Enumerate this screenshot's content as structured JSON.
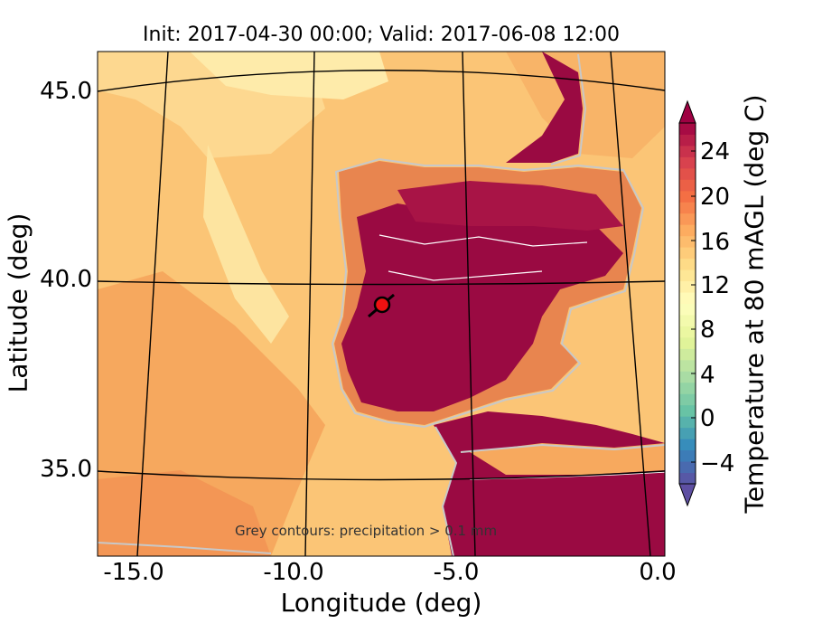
{
  "chart_data": {
    "type": "heatmap",
    "title": "Init: 2017-04-30 00:00; Valid: 2017-06-08 12:00",
    "xlabel": "Longitude (deg)",
    "ylabel": "Latitude (deg)",
    "x_ticks": [
      "-15.0",
      "-10.0",
      "-5.0",
      "0.0"
    ],
    "y_ticks": [
      "45.0",
      "40.0",
      "35.0"
    ],
    "xlim": [
      -16.0,
      0.1
    ],
    "ylim": [
      32.6,
      46.2
    ],
    "colorbar": {
      "label": "Temperature at 80 mAGL (deg C)",
      "ticks": [
        "24",
        "20",
        "16",
        "12",
        "8",
        "4",
        "0",
        "−4"
      ],
      "range": [
        -6,
        26
      ],
      "extend": "both",
      "colormap": "Spectral_r"
    },
    "annotation": "Grey contours: precipitation > 0.1 mm",
    "marker": {
      "lon": -7.7,
      "lat": 39.4,
      "color": "#ee1111"
    },
    "field_colors": {
      "hot": "#9a0a42",
      "warm": "#f4a05c",
      "mild": "#fbd07c",
      "cool": "#fee9a2"
    }
  }
}
